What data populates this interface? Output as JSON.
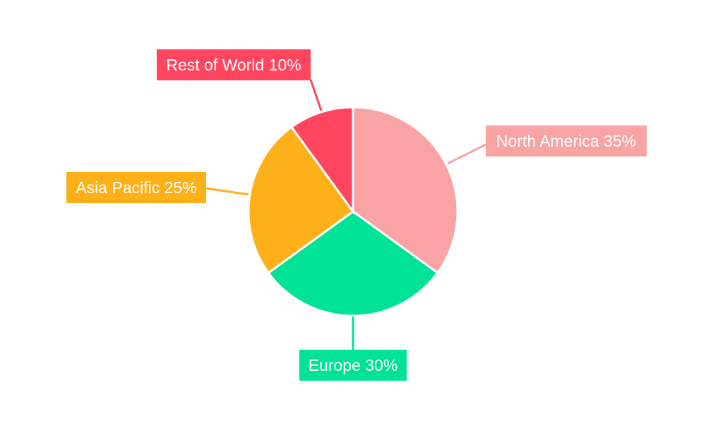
{
  "chart_data": {
    "type": "pie",
    "title": "",
    "categories": [
      "North America",
      "Europe",
      "Asia Pacific",
      "Rest of World"
    ],
    "values": [
      35,
      30,
      25,
      10
    ],
    "labels": [
      "North America 35%",
      "Europe 30%",
      "Asia Pacific 25%",
      "Rest of World 10%"
    ],
    "colors": [
      "#F9A3A4",
      "#00E396",
      "#FEB019",
      "#FF4560"
    ],
    "start_angle": "top, clockwise",
    "legend": "none"
  }
}
